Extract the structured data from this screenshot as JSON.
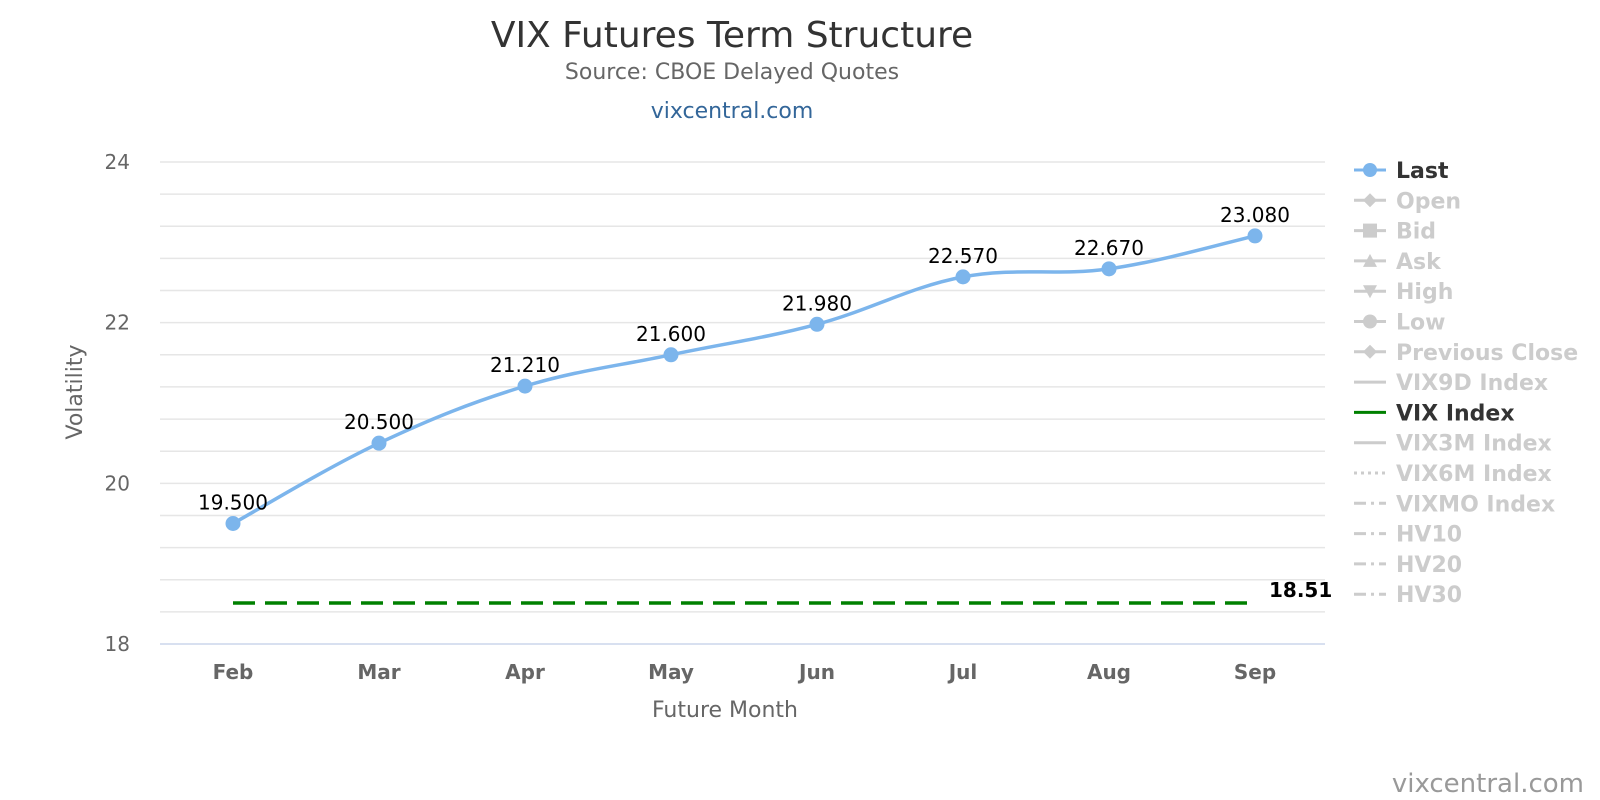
{
  "header": {
    "title": "VIX Futures Term Structure",
    "subtitle": "Source: CBOE Delayed Quotes",
    "link": "vixcentral.com"
  },
  "credit": "vixcentral.com",
  "colors": {
    "last": "#7cb5ec",
    "vix": "#008000",
    "legend_active": "#333333",
    "legend_inactive": "#cccccc",
    "grid": "#e6e6e6"
  },
  "chart_data": {
    "type": "line",
    "xlabel": "Future Month",
    "ylabel": "Volatility",
    "ylim": [
      18,
      24
    ],
    "yticks": [
      "18",
      "20",
      "22",
      "24"
    ],
    "categories": [
      "Feb",
      "Mar",
      "Apr",
      "May",
      "Jun",
      "Jul",
      "Aug",
      "Sep"
    ],
    "series": [
      {
        "name": "Last",
        "values": [
          19.5,
          20.5,
          21.21,
          21.6,
          21.98,
          22.57,
          22.67,
          23.08
        ],
        "labels": [
          "19.500",
          "20.500",
          "21.210",
          "21.600",
          "21.980",
          "22.570",
          "22.670",
          "23.080"
        ],
        "visible": true,
        "style": "solid-smooth-markers"
      }
    ],
    "vix_index": {
      "name": "VIX Index",
      "value": 18.51,
      "label": "18.51",
      "style": "dashed"
    },
    "legend": [
      {
        "name": "Last",
        "active": true,
        "symbol": "circle",
        "line": "solid"
      },
      {
        "name": "Open",
        "active": false,
        "symbol": "diamond",
        "line": "solid"
      },
      {
        "name": "Bid",
        "active": false,
        "symbol": "square",
        "line": "solid"
      },
      {
        "name": "Ask",
        "active": false,
        "symbol": "triangle",
        "line": "solid"
      },
      {
        "name": "High",
        "active": false,
        "symbol": "triangle-down",
        "line": "solid"
      },
      {
        "name": "Low",
        "active": false,
        "symbol": "circle",
        "line": "solid"
      },
      {
        "name": "Previous Close",
        "active": false,
        "symbol": "diamond",
        "line": "solid"
      },
      {
        "name": "VIX9D Index",
        "active": false,
        "symbol": "none",
        "line": "solid"
      },
      {
        "name": "VIX Index",
        "active": true,
        "symbol": "none",
        "line": "solid",
        "color": "#008000"
      },
      {
        "name": "VIX3M Index",
        "active": false,
        "symbol": "none",
        "line": "solid"
      },
      {
        "name": "VIX6M Index",
        "active": false,
        "symbol": "none",
        "line": "dotted"
      },
      {
        "name": "VIXMO Index",
        "active": false,
        "symbol": "none",
        "line": "dashdot"
      },
      {
        "name": "HV10",
        "active": false,
        "symbol": "none",
        "line": "dashdot"
      },
      {
        "name": "HV20",
        "active": false,
        "symbol": "none",
        "line": "dashdot"
      },
      {
        "name": "HV30",
        "active": false,
        "symbol": "none",
        "line": "dashdot"
      }
    ],
    "legend_position": "right",
    "grid": true
  }
}
